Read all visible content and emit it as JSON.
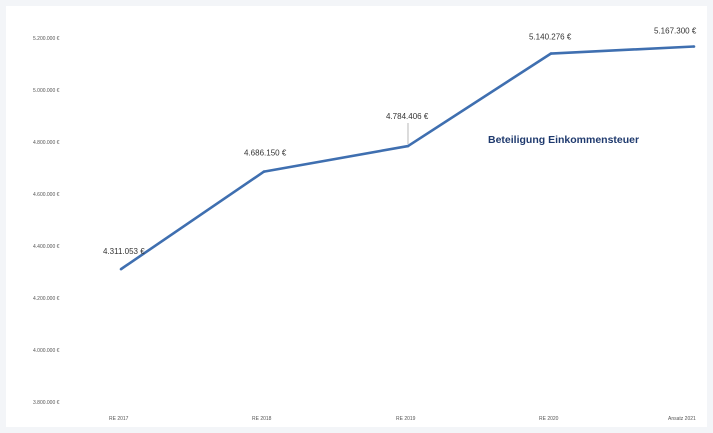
{
  "chart_data": {
    "type": "line",
    "title": "",
    "xlabel": "",
    "ylabel": "",
    "categories": [
      "RE 2017",
      "RE 2018",
      "RE 2019",
      "RE 2020",
      "Ansatz 2021"
    ],
    "series": [
      {
        "name": "Beteiligung Einkommensteuer",
        "values": [
          4311053,
          4686150,
          4784406,
          5140276,
          5167300
        ],
        "data_labels": [
          "4.311.053 €",
          "4.686.150 €",
          "4.784.406 €",
          "5.140.276 €",
          "5.167.300 €"
        ],
        "color": "#3f6fb0"
      }
    ],
    "ylim": [
      3800000,
      5200000
    ],
    "yticks": [
      3800000,
      4000000,
      4200000,
      4400000,
      4600000,
      4800000,
      5000000,
      5200000
    ],
    "ytick_labels": [
      "3.800.000 €",
      "4.000.000 €",
      "4.200.000 €",
      "4.400.000 €",
      "4.600.000 €",
      "4.800.000 €",
      "5.000.000 €",
      "5.200.000 €"
    ],
    "grid": false,
    "legend": "title-label-inside-plot",
    "colors": {
      "background": "#ffffff",
      "page": "#f3f5f8",
      "series_title": "#1f3a6e"
    }
  }
}
